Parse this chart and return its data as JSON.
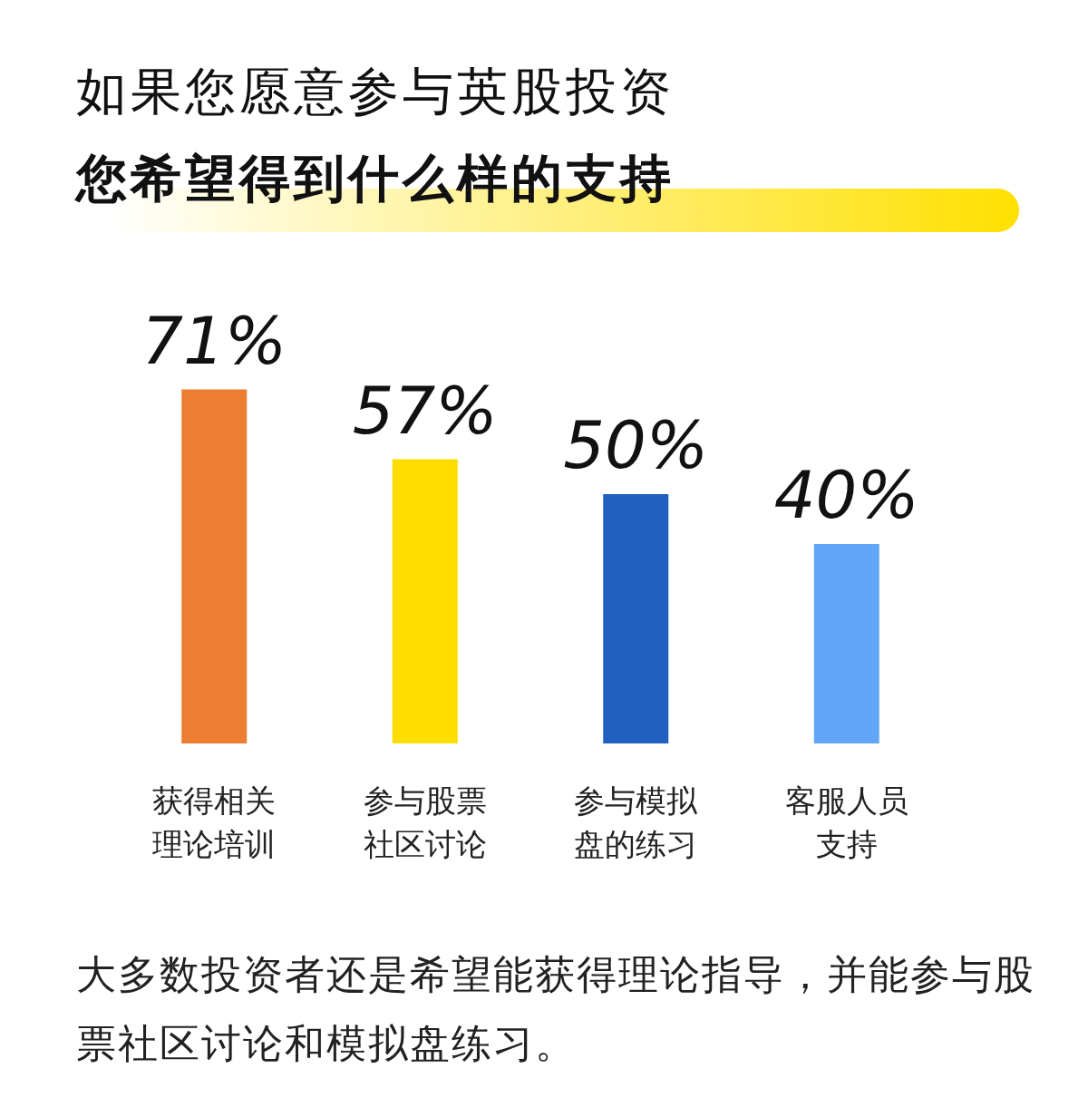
{
  "chart_data": {
    "type": "bar",
    "title": "如果您愿意参与英股投资",
    "subtitle": "您希望得到什么样的支持",
    "categories": [
      "获得相关理论培训",
      "参与股票社区讨论",
      "参与模拟盘的练习",
      "客服人员支持"
    ],
    "values": [
      71,
      57,
      50,
      40
    ],
    "colors": [
      "#ed7d31",
      "#ffdd00",
      "#2060c0",
      "#62a6f7"
    ],
    "value_labels": [
      "71%",
      "57%",
      "50%",
      "40%"
    ],
    "annotations": [
      "大多数投资者还是希望能获得理论指导，并能参与股票社区讨论和模拟盘练习。"
    ]
  }
}
